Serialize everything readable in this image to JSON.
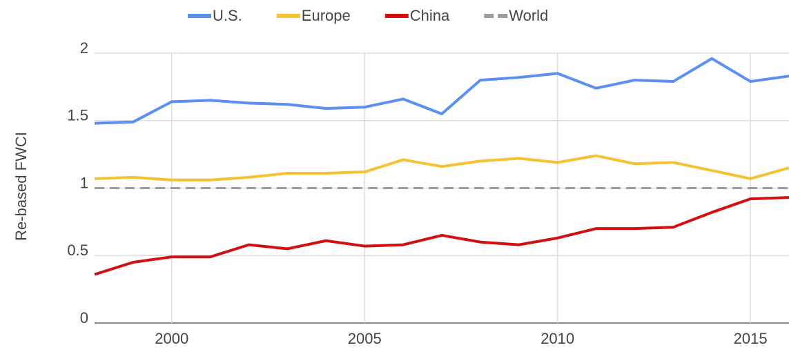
{
  "chart_data": {
    "type": "line",
    "y_label": "Re-based FWCI",
    "x": [
      1998,
      1999,
      2000,
      2001,
      2002,
      2003,
      2004,
      2005,
      2006,
      2007,
      2008,
      2009,
      2010,
      2011,
      2012,
      2013,
      2014,
      2015,
      2016
    ],
    "series": [
      {
        "name": "U.S.",
        "color": "#5b8ff2",
        "values": [
          1.48,
          1.49,
          1.64,
          1.65,
          1.63,
          1.62,
          1.59,
          1.6,
          1.66,
          1.55,
          1.8,
          1.82,
          1.85,
          1.74,
          1.8,
          1.79,
          1.96,
          1.79,
          1.83
        ]
      },
      {
        "name": "Europe",
        "color": "#f4c430",
        "values": [
          1.07,
          1.08,
          1.06,
          1.06,
          1.08,
          1.11,
          1.11,
          1.12,
          1.21,
          1.16,
          1.2,
          1.22,
          1.19,
          1.24,
          1.18,
          1.19,
          1.13,
          1.07,
          1.15
        ]
      },
      {
        "name": "China",
        "color": "#d40f0f",
        "values": [
          0.36,
          0.45,
          0.49,
          0.49,
          0.58,
          0.55,
          0.61,
          0.57,
          0.58,
          0.65,
          0.6,
          0.58,
          0.63,
          0.7,
          0.7,
          0.71,
          0.82,
          0.92,
          0.93
        ]
      },
      {
        "name": "World",
        "color": "#9e9e9e",
        "dashed": true,
        "values": [
          1,
          1,
          1,
          1,
          1,
          1,
          1,
          1,
          1,
          1,
          1,
          1,
          1,
          1,
          1,
          1,
          1,
          1,
          1
        ]
      }
    ],
    "xlim": [
      1998,
      2016
    ],
    "xticks": [
      2000,
      2005,
      2010,
      2015
    ],
    "ylim": [
      0,
      2
    ],
    "yticks": [
      0,
      0.5,
      1,
      1.5,
      2
    ],
    "grid": true,
    "legend": "top"
  }
}
